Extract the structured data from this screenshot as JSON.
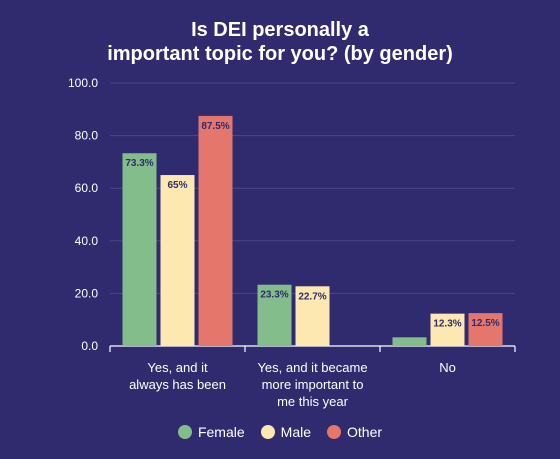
{
  "chart_data": {
    "type": "bar",
    "title_lines": [
      "Is DEI personally a",
      "important topic for you? (by gender)"
    ],
    "categories": [
      [
        "Yes, and it",
        "always has been"
      ],
      [
        "Yes, and it became",
        "more important to",
        "me this year"
      ],
      [
        "No"
      ]
    ],
    "series": [
      {
        "name": "Female",
        "color": "#82bd8b",
        "values": [
          73.3,
          23.3,
          3.3
        ],
        "labels": [
          "73.3%",
          "23.3%",
          ""
        ]
      },
      {
        "name": "Male",
        "color": "#fde8b2",
        "values": [
          65,
          22.7,
          12.3
        ],
        "labels": [
          "65%",
          "22.7%",
          "12.3%"
        ]
      },
      {
        "name": "Other",
        "color": "#e5766c",
        "values": [
          87.5,
          0,
          12.5
        ],
        "labels": [
          "87.5%",
          "",
          "12.5%"
        ]
      }
    ],
    "yticks": [
      "0.0",
      "20.0",
      "40.0",
      "60.0",
      "80.0",
      "100.0"
    ],
    "ylim": [
      0,
      100
    ],
    "grid": true,
    "legend_position": "bottom-center",
    "colors": {
      "background": "#2f2b6e",
      "gridline": "#4a4790",
      "text": "#ffffff",
      "label_text": "#2f2b6e"
    }
  }
}
